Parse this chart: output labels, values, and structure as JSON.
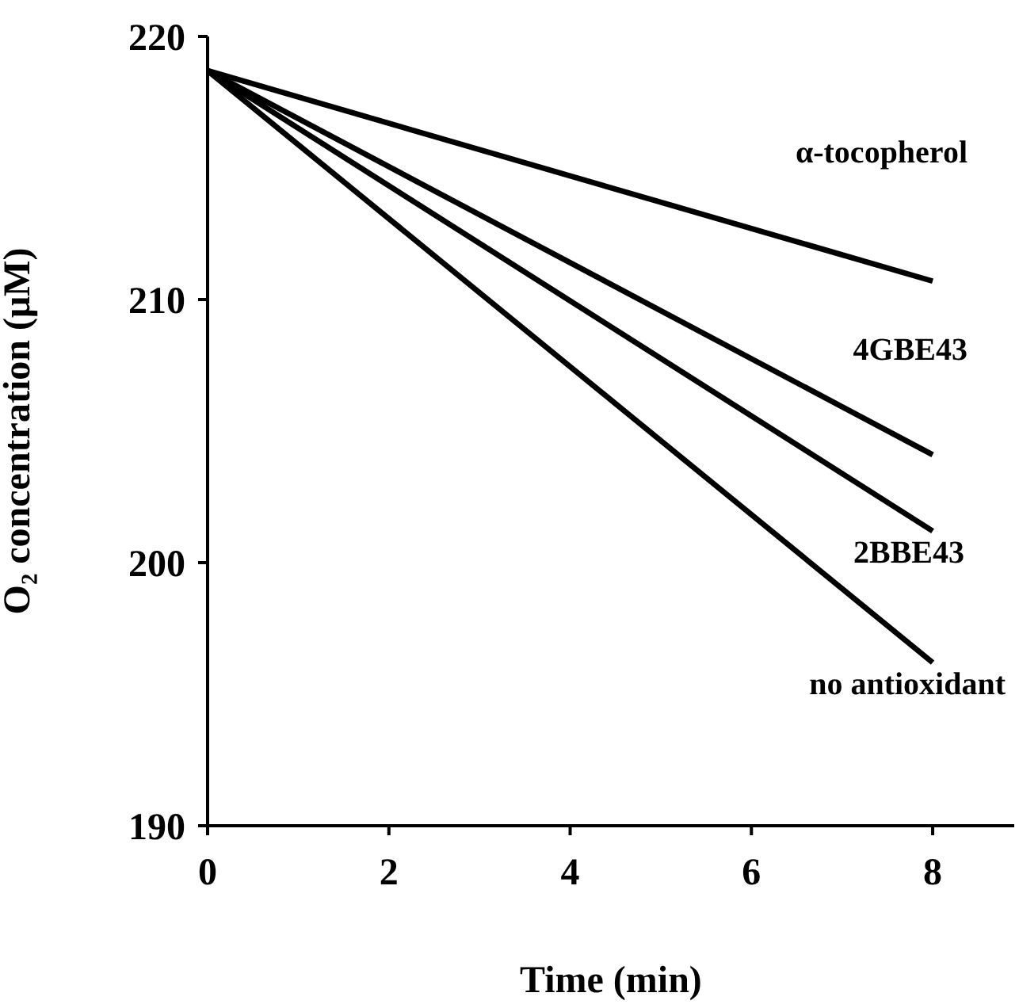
{
  "chart_data": {
    "type": "line",
    "xlabel": "Time (min)",
    "ylabel": "O₂ concentration (μM)",
    "x": [
      0,
      8
    ],
    "xlim": [
      0,
      8.9
    ],
    "xticks": [
      0,
      2,
      4,
      6,
      8
    ],
    "ylim": [
      190,
      220
    ],
    "yticks": [
      190,
      200,
      210,
      220
    ],
    "grid": false,
    "legend": false,
    "marker": "none",
    "line_style": "solid",
    "series": [
      {
        "name": "α-tocopherol",
        "color": "#000000",
        "values": [
          218.7,
          210.7
        ]
      },
      {
        "name": "4GBE43",
        "color": "#000000",
        "values": [
          218.7,
          204.1
        ]
      },
      {
        "name": "2BBE43",
        "color": "#000000",
        "values": [
          218.7,
          201.2
        ]
      },
      {
        "name": "no antioxidant",
        "color": "#000000",
        "values": [
          218.7,
          196.2
        ]
      }
    ]
  }
}
